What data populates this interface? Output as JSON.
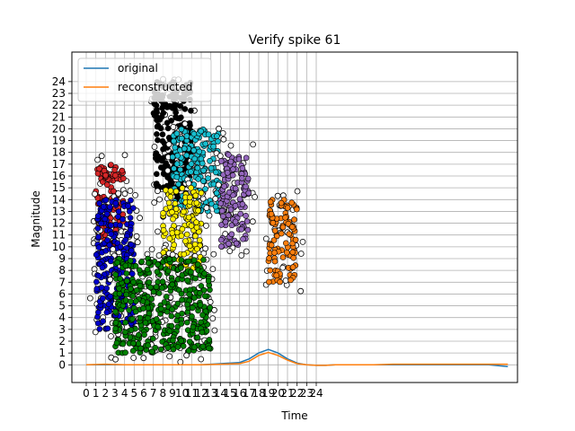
{
  "chart_data": {
    "type": "line",
    "title": "Verify spike 61",
    "xlabel": "Time",
    "ylabel": "Magnitude",
    "xlim": [
      -1.5,
      45
    ],
    "ylim": [
      -1.5,
      26.5
    ],
    "xticks": [
      0,
      1,
      2,
      3,
      4,
      5,
      6,
      7,
      8,
      9,
      10,
      11,
      12,
      13,
      14,
      15,
      16,
      17,
      18,
      19,
      20,
      21,
      22,
      23,
      24
    ],
    "yticks": [
      0,
      1,
      2,
      3,
      4,
      5,
      6,
      7,
      8,
      9,
      10,
      11,
      12,
      13,
      14,
      15,
      16,
      17,
      18,
      19,
      20,
      21,
      22,
      23,
      24
    ],
    "grid": true,
    "legend_position": "upper-left",
    "series": [
      {
        "name": "original",
        "color": "#1f77b4",
        "x": [
          0,
          2,
          4,
          6,
          8,
          10,
          12,
          14,
          16,
          17,
          18,
          19,
          20,
          21,
          22,
          23,
          24,
          25,
          26,
          27,
          28,
          30,
          32,
          34,
          36,
          38,
          40,
          42,
          44
        ],
        "y": [
          0.0,
          0.0,
          0.0,
          0.0,
          0.0,
          0.0,
          0.0,
          0.1,
          0.2,
          0.5,
          1.0,
          1.3,
          1.0,
          0.5,
          0.15,
          0.0,
          -0.05,
          -0.05,
          0.0,
          0.0,
          0.0,
          0.0,
          0.0,
          0.0,
          0.0,
          0.0,
          0.0,
          0.0,
          -0.15
        ]
      },
      {
        "name": "reconstructed",
        "color": "#ff7f0e",
        "x": [
          0,
          2,
          4,
          6,
          8,
          10,
          12,
          14,
          16,
          17,
          18,
          19,
          20,
          21,
          22,
          23,
          24,
          25,
          26,
          27,
          28,
          30,
          32,
          34,
          36,
          38,
          40,
          42,
          44
        ],
        "y": [
          0.0,
          0.05,
          0.0,
          0.0,
          0.0,
          0.0,
          0.0,
          0.05,
          0.1,
          0.3,
          0.8,
          1.05,
          0.8,
          0.4,
          0.1,
          0.0,
          -0.05,
          -0.05,
          0.0,
          0.0,
          0.0,
          0.0,
          0.05,
          0.05,
          0.05,
          0.05,
          0.05,
          0.05,
          0.05
        ]
      }
    ],
    "scatter_clusters": [
      {
        "color": "#000000",
        "x_range": [
          7,
          11
        ],
        "y_range": [
          14,
          24
        ]
      },
      {
        "color": "#17becf",
        "x_range": [
          9,
          14
        ],
        "y_range": [
          13,
          20
        ]
      },
      {
        "color": "#d62728",
        "x_range": [
          1,
          4
        ],
        "y_range": [
          10,
          17
        ]
      },
      {
        "color": "#0000cc",
        "x_range": [
          1,
          5
        ],
        "y_range": [
          3,
          14
        ]
      },
      {
        "color": "#ffee00",
        "x_range": [
          8,
          12
        ],
        "y_range": [
          8,
          15
        ]
      },
      {
        "color": "#9467bd",
        "x_range": [
          14,
          17
        ],
        "y_range": [
          10,
          18
        ]
      },
      {
        "color": "#ff7f0e",
        "x_range": [
          19,
          22
        ],
        "y_range": [
          7,
          14
        ]
      },
      {
        "color": "#008000",
        "x_range": [
          3,
          13
        ],
        "y_range": [
          1,
          9
        ]
      }
    ]
  }
}
